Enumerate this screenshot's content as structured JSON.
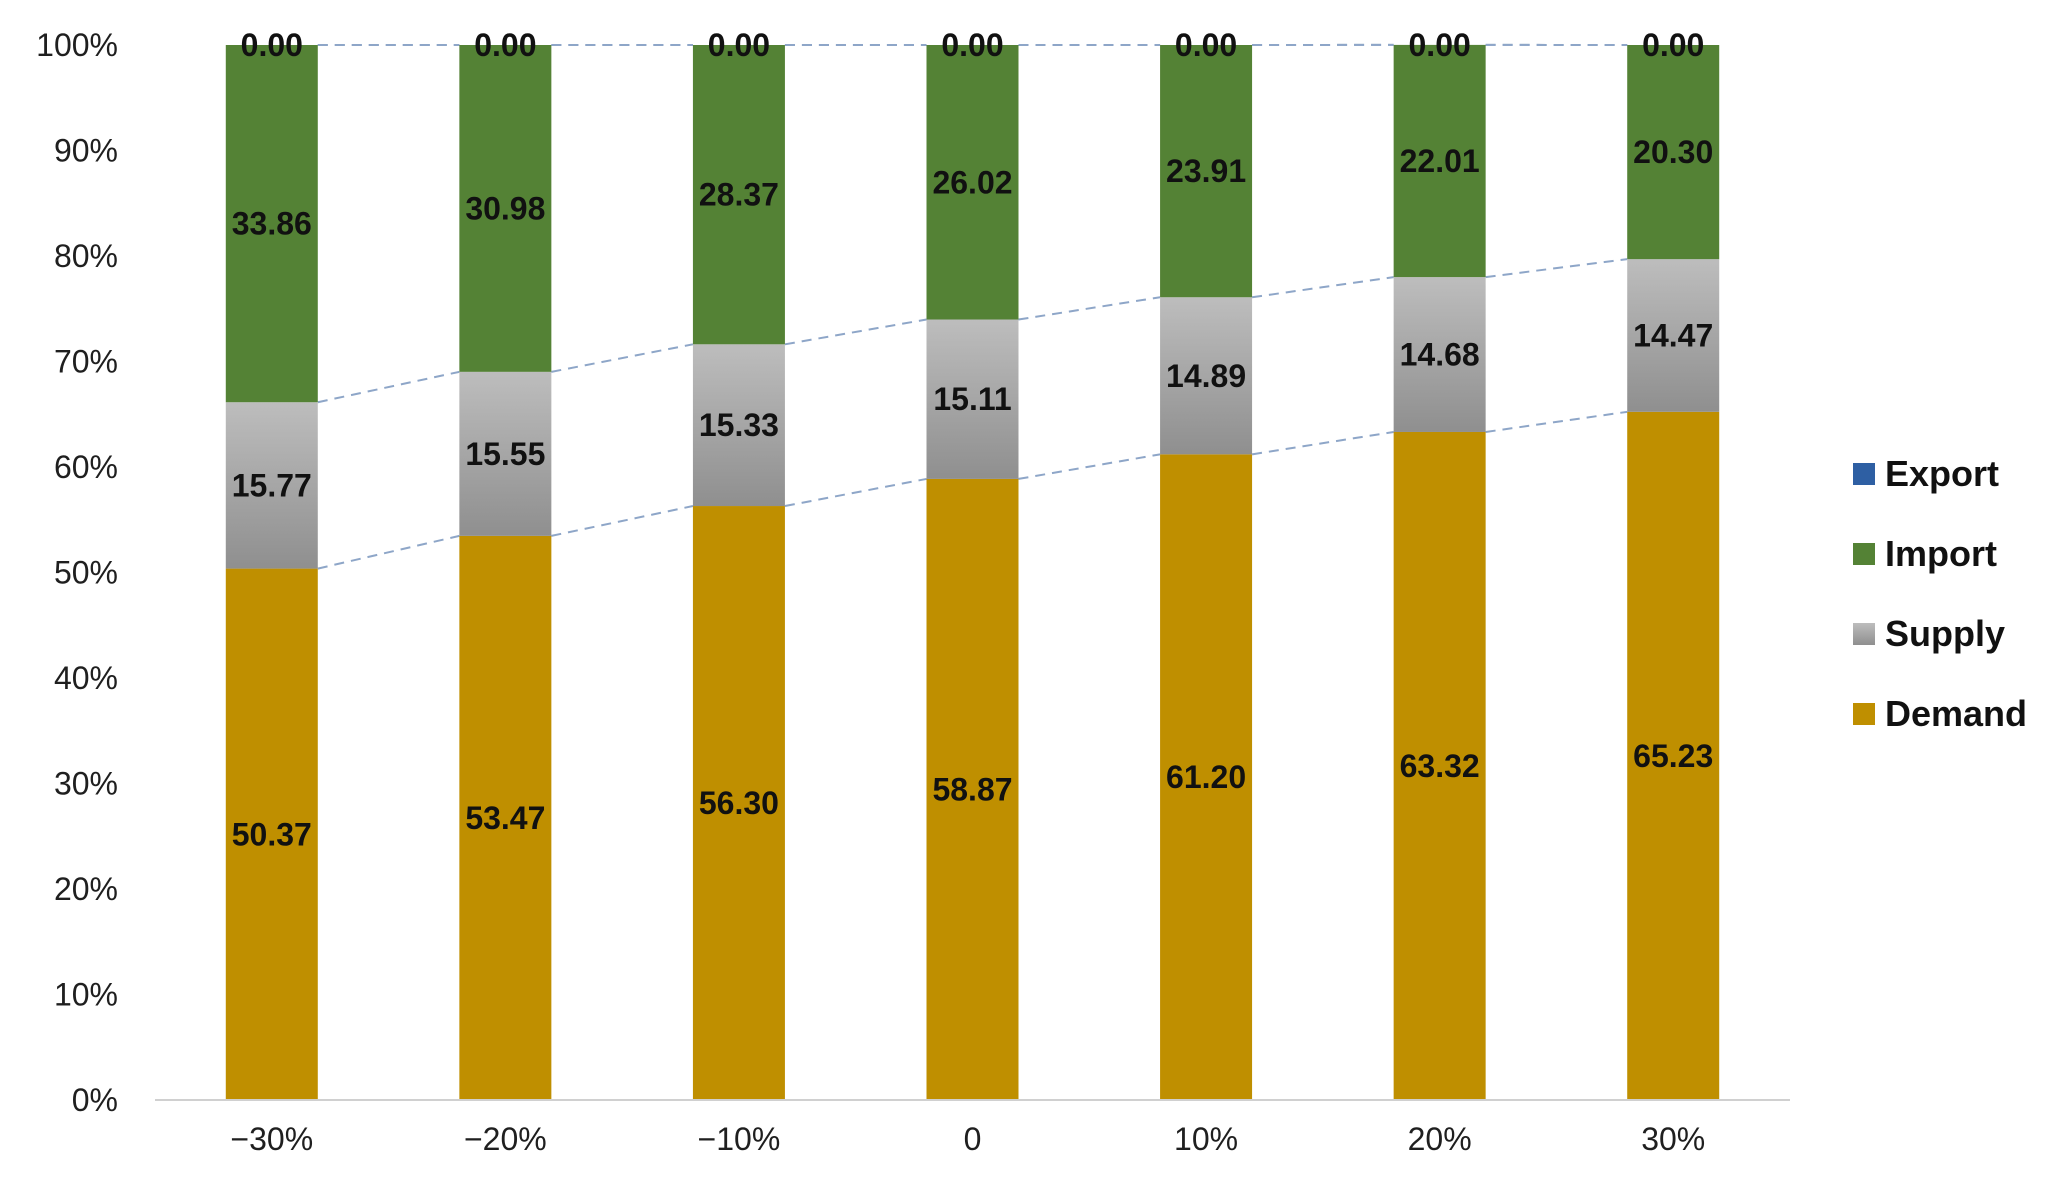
{
  "chart_data": {
    "type": "bar",
    "stacked": true,
    "normalized": true,
    "title": "",
    "xlabel": "",
    "ylabel": "",
    "categories": [
      "−30%",
      "−20%",
      "−10%",
      "0",
      "10%",
      "20%",
      "30%"
    ],
    "y_ticks": [
      "0%",
      "10%",
      "20%",
      "30%",
      "40%",
      "50%",
      "60%",
      "70%",
      "80%",
      "90%",
      "100%"
    ],
    "ylim": [
      0,
      100
    ],
    "series": [
      {
        "name": "Demand",
        "color": "#BF8F00",
        "values": [
          50.37,
          53.47,
          56.3,
          58.87,
          61.2,
          63.32,
          65.23
        ],
        "labels": [
          "50.37",
          "53.47",
          "56.30",
          "58.87",
          "61.20",
          "63.32",
          "65.23"
        ]
      },
      {
        "name": "Supply",
        "color": "#A6A6A6",
        "values": [
          15.77,
          15.55,
          15.33,
          15.11,
          14.89,
          14.68,
          14.47
        ],
        "labels": [
          "15.77",
          "15.55",
          "15.33",
          "15.11",
          "14.89",
          "14.68",
          "14.47"
        ]
      },
      {
        "name": "Import",
        "color": "#548235",
        "values": [
          33.86,
          30.98,
          28.37,
          26.02,
          23.91,
          22.01,
          20.3
        ],
        "labels": [
          "33.86",
          "30.98",
          "28.37",
          "26.02",
          "23.91",
          "22.01",
          "20.30"
        ]
      },
      {
        "name": "Export",
        "color": "#2E5FA3",
        "values": [
          0.0,
          0.0,
          0.0,
          0.0,
          0.0,
          0.0,
          0.0
        ],
        "labels": [
          "0.00",
          "0.00",
          "0.00",
          "0.00",
          "0.00",
          "0.00",
          "0.00"
        ]
      }
    ],
    "series_lines": true,
    "legend": {
      "position": "right",
      "order": [
        "Export",
        "Import",
        "Supply",
        "Demand"
      ]
    },
    "grid": false
  }
}
